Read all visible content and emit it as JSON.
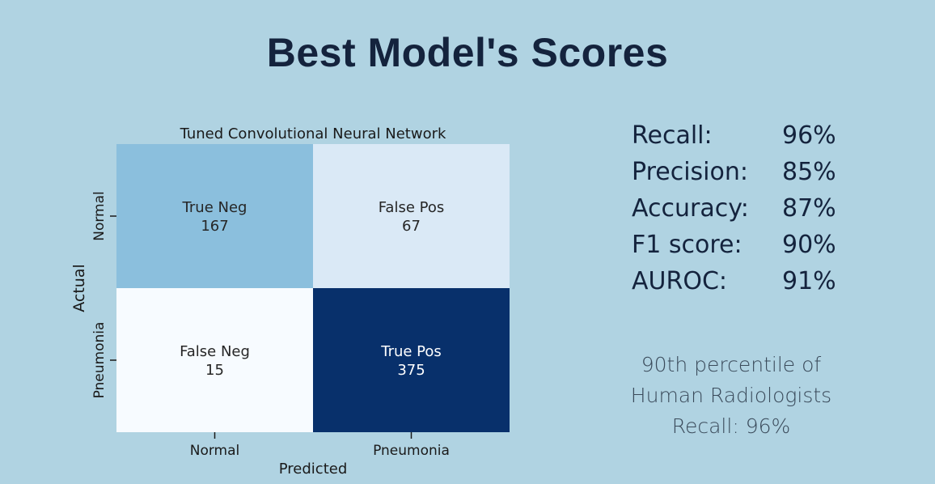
{
  "slide": {
    "title": "Best Model's Scores"
  },
  "chart_data": {
    "type": "heatmap",
    "title": "Tuned Convolutional Neural Network",
    "xlabel": "Predicted",
    "ylabel": "Actual",
    "x_categories": [
      "Normal",
      "Pneumonia"
    ],
    "y_categories": [
      "Normal",
      "Pneumonia"
    ],
    "cells": [
      [
        {
          "label": "True Neg",
          "value": 167
        },
        {
          "label": "False Pos",
          "value": 67
        }
      ],
      [
        {
          "label": "False Neg",
          "value": 15
        },
        {
          "label": "True Pos",
          "value": 375
        }
      ]
    ],
    "colormap": "Blues",
    "colors": {
      "low": "#f7fbff",
      "high": "#08306b"
    }
  },
  "metrics": [
    {
      "label": "Recall:",
      "value": "96%"
    },
    {
      "label": "Precision:",
      "value": "85%"
    },
    {
      "label": "Accuracy:",
      "value": "87%"
    },
    {
      "label": "F1 score:",
      "value": "90%"
    },
    {
      "label": "AUROC:",
      "value": "91%"
    }
  ],
  "note": {
    "line1": "90th percentile of",
    "line2": "Human Radiologists",
    "line3": "Recall: 96%"
  }
}
